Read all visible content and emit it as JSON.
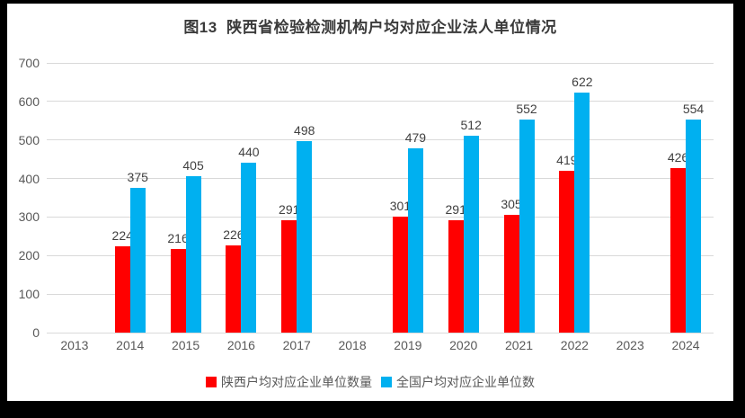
{
  "chart_data": {
    "type": "bar",
    "title": "图13  陕西省检验检测机构户均对应企业法人单位情况",
    "categories": [
      "2013",
      "2014",
      "2015",
      "2016",
      "2017",
      "2018",
      "2019",
      "2020",
      "2021",
      "2022",
      "2023",
      "2024"
    ],
    "series": [
      {
        "name": "陕西户均对应企业单位数量",
        "color": "#ff0000",
        "values": [
          null,
          224,
          216,
          226,
          291,
          null,
          301,
          291,
          305,
          419,
          null,
          426
        ]
      },
      {
        "name": "全国户均对应企业单位数",
        "color": "#00b0f0",
        "values": [
          null,
          375,
          405,
          440,
          498,
          null,
          479,
          512,
          552,
          622,
          null,
          554
        ]
      }
    ],
    "xlabel": "",
    "ylabel": "",
    "ylim": [
      0,
      700
    ],
    "yticks": [
      0,
      100,
      200,
      300,
      400,
      500,
      600,
      700
    ],
    "grid": true,
    "legend_position": "bottom",
    "gridline_color": "#d9d9d9"
  }
}
